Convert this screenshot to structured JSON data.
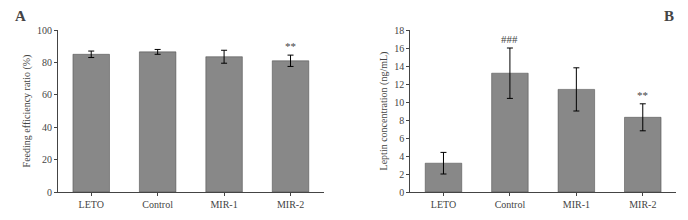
{
  "chart_data": [
    {
      "type": "bar",
      "title": "A",
      "categories": [
        "LETO",
        "Control",
        "MIR-1",
        "MIR-2"
      ],
      "values": [
        85.0,
        86.5,
        83.5,
        81.0
      ],
      "errors": [
        2.0,
        1.5,
        4.0,
        3.5
      ],
      "ylabel": "Feeding efficiency ratio (%)",
      "ylim": [
        0,
        100
      ],
      "yticks": [
        0,
        20,
        40,
        60,
        80,
        100
      ],
      "annotations": [
        {
          "x": "MIR-2",
          "text": "**"
        }
      ],
      "color": "#888888",
      "grid": false
    },
    {
      "type": "bar",
      "title": "B",
      "categories": [
        "LETO",
        "Control",
        "MIR-1",
        "MIR-2"
      ],
      "values": [
        3.2,
        13.2,
        11.4,
        8.3
      ],
      "errors": [
        1.2,
        2.8,
        2.4,
        1.5
      ],
      "ylabel": "Leptin concentration (ng/mL)",
      "ylim": [
        0,
        18
      ],
      "yticks": [
        0,
        2,
        4,
        6,
        8,
        10,
        12,
        14,
        16,
        18
      ],
      "annotations": [
        {
          "x": "Control",
          "text": "###"
        },
        {
          "x": "MIR-2",
          "text": "**"
        }
      ],
      "color": "#888888",
      "grid": false
    }
  ]
}
